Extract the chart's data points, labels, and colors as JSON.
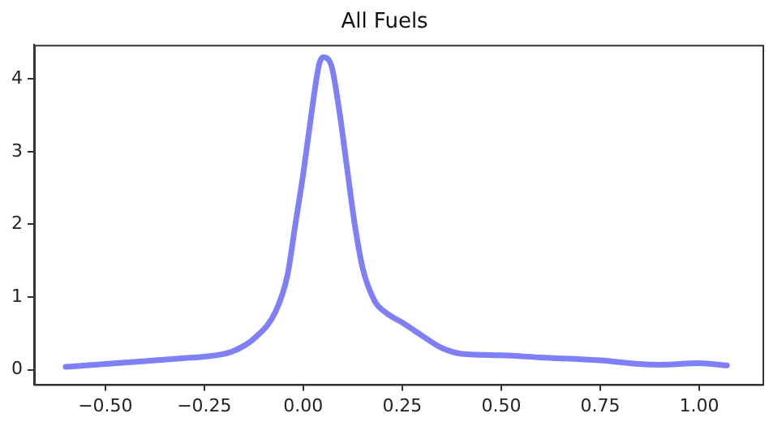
{
  "chart_data": {
    "type": "line",
    "title": "All Fuels",
    "x": [
      -0.6,
      -0.5,
      -0.4,
      -0.3,
      -0.25,
      -0.18,
      -0.12,
      -0.07,
      -0.04,
      -0.02,
      0,
      0.02,
      0.04,
      0.05,
      0.07,
      0.09,
      0.11,
      0.13,
      0.15,
      0.18,
      0.21,
      0.25,
      0.3,
      0.35,
      0.4,
      0.5,
      0.6,
      0.75,
      0.85,
      0.9,
      1.0,
      1.07
    ],
    "series": [
      {
        "color": "#7f7ff7",
        "values": [
          0.04,
          0.08,
          0.12,
          0.16,
          0.18,
          0.25,
          0.45,
          0.8,
          1.3,
          2.0,
          2.7,
          3.5,
          4.2,
          4.3,
          4.2,
          3.6,
          2.8,
          2.0,
          1.4,
          0.95,
          0.78,
          0.65,
          0.47,
          0.3,
          0.22,
          0.2,
          0.17,
          0.13,
          0.08,
          0.07,
          0.09,
          0.06
        ]
      }
    ],
    "xlim": [
      -0.68,
      1.16
    ],
    "ylim": [
      -0.2,
      4.47
    ],
    "xticks": [
      {
        "value": -0.5,
        "label": "−0.50"
      },
      {
        "value": -0.25,
        "label": "−0.25"
      },
      {
        "value": 0,
        "label": "0.00"
      },
      {
        "value": 0.25,
        "label": "0.25"
      },
      {
        "value": 0.5,
        "label": "0.50"
      },
      {
        "value": 0.75,
        "label": "0.75"
      },
      {
        "value": 1,
        "label": "1.00"
      }
    ],
    "yticks": [
      0,
      1,
      2,
      3,
      4
    ],
    "grid": false,
    "legend": false,
    "marker": "none",
    "line_style": "solid"
  }
}
